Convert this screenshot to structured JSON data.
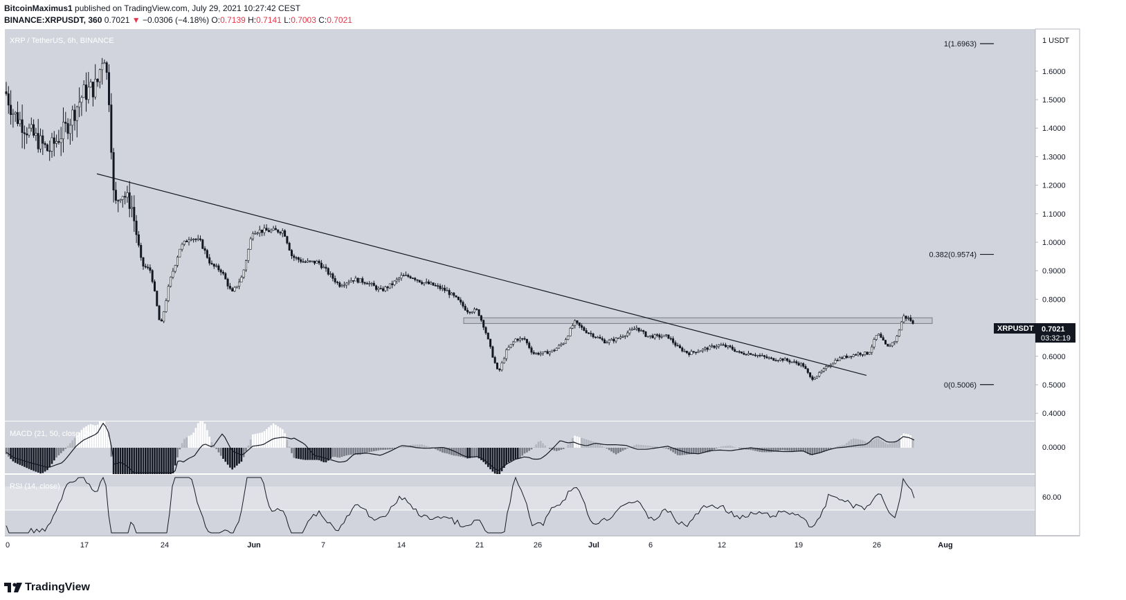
{
  "header": {
    "author": "BitcoinMaximus1",
    "published_text": "published on TradingView.com, July 29, 2021 10:27:42 CEST",
    "symbol": "BINANCE:XRPUSDT, 360",
    "last": "0.7021",
    "change": "−0.0306 (−4.18%)",
    "o_label": "O:",
    "o": "0.7139",
    "h_label": "H:",
    "h": "0.7141",
    "l_label": "L:",
    "l": "0.7003",
    "c_label": "C:",
    "c": "0.7021"
  },
  "chart_title": "XRP / TetherUS, 6h, BINANCE",
  "macd_label": "MACD (21, 50, close, 24)",
  "rsi_label": "RSI (14, close)",
  "price_axis": {
    "unit_label": "1 USDT",
    "ticks": [
      "1.6000",
      "1.5000",
      "1.4000",
      "1.3000",
      "1.2000",
      "1.1000",
      "1.0000",
      "0.9000",
      "0.8000",
      "0.7000",
      "0.6000",
      "0.5000",
      "0.4000"
    ]
  },
  "macd_axis_tick": "0.0000",
  "rsi_axis_tick": "60.00",
  "time_axis": [
    "0",
    "17",
    "24",
    "Jun",
    "7",
    "14",
    "21",
    "26",
    "Jul",
    "6",
    "12",
    "19",
    "26",
    "Aug"
  ],
  "fib_levels": [
    {
      "label": "1(1.6963)",
      "value": 1.6963
    },
    {
      "label": "0.382(0.9574)",
      "value": 0.9574
    },
    {
      "label": "0(0.5006)",
      "value": 0.5006
    }
  ],
  "price_tag": {
    "symbol": "XRPUSDT",
    "price": "0.7021",
    "countdown": "03:32:19"
  },
  "footer": {
    "brand": "TradingView"
  },
  "colors": {
    "pane_bg": "#d1d4dc",
    "rsi_band": "#dfe1e7",
    "price_tag_bg": "#131722",
    "down_arrow": "#e5374a"
  },
  "chart_data": {
    "type": "candlestick",
    "title": "XRP / TetherUS, 6h, BINANCE",
    "timeframe": "6h",
    "ylim": [
      0.37,
      1.72
    ],
    "approx_close_path": [
      [
        0,
        1.58
      ],
      [
        20,
        1.45
      ],
      [
        45,
        1.38
      ],
      [
        70,
        1.32
      ],
      [
        95,
        1.4
      ],
      [
        120,
        1.52
      ],
      [
        140,
        1.55
      ],
      [
        150,
        1.68
      ],
      [
        158,
        1.5
      ],
      [
        165,
        1.12
      ],
      [
        175,
        1.18
      ],
      [
        190,
        1.13
      ],
      [
        205,
        0.92
      ],
      [
        218,
        0.9
      ],
      [
        232,
        0.7
      ],
      [
        245,
        0.86
      ],
      [
        260,
        0.98
      ],
      [
        275,
        1.02
      ],
      [
        290,
        1.0
      ],
      [
        305,
        0.92
      ],
      [
        320,
        0.9
      ],
      [
        335,
        0.82
      ],
      [
        350,
        0.88
      ],
      [
        365,
        1.04
      ],
      [
        380,
        1.04
      ],
      [
        395,
        1.04
      ],
      [
        410,
        1.04
      ],
      [
        422,
        0.95
      ],
      [
        440,
        0.93
      ],
      [
        460,
        0.93
      ],
      [
        475,
        0.89
      ],
      [
        490,
        0.85
      ],
      [
        510,
        0.87
      ],
      [
        530,
        0.86
      ],
      [
        550,
        0.83
      ],
      [
        565,
        0.85
      ],
      [
        580,
        0.88
      ],
      [
        595,
        0.88
      ],
      [
        610,
        0.86
      ],
      [
        625,
        0.85
      ],
      [
        645,
        0.83
      ],
      [
        660,
        0.8
      ],
      [
        675,
        0.76
      ],
      [
        690,
        0.76
      ],
      [
        700,
        0.7
      ],
      [
        712,
        0.6
      ],
      [
        720,
        0.54
      ],
      [
        732,
        0.62
      ],
      [
        745,
        0.66
      ],
      [
        758,
        0.66
      ],
      [
        770,
        0.61
      ],
      [
        785,
        0.61
      ],
      [
        800,
        0.62
      ],
      [
        815,
        0.65
      ],
      [
        830,
        0.72
      ],
      [
        845,
        0.69
      ],
      [
        860,
        0.67
      ],
      [
        875,
        0.65
      ],
      [
        890,
        0.66
      ],
      [
        905,
        0.68
      ],
      [
        920,
        0.7
      ],
      [
        935,
        0.67
      ],
      [
        950,
        0.67
      ],
      [
        965,
        0.67
      ],
      [
        980,
        0.63
      ],
      [
        995,
        0.61
      ],
      [
        1010,
        0.62
      ],
      [
        1025,
        0.63
      ],
      [
        1040,
        0.64
      ],
      [
        1055,
        0.63
      ],
      [
        1070,
        0.61
      ],
      [
        1085,
        0.61
      ],
      [
        1100,
        0.6
      ],
      [
        1115,
        0.59
      ],
      [
        1130,
        0.59
      ],
      [
        1145,
        0.58
      ],
      [
        1160,
        0.57
      ],
      [
        1172,
        0.52
      ],
      [
        1185,
        0.54
      ],
      [
        1198,
        0.57
      ],
      [
        1210,
        0.59
      ],
      [
        1225,
        0.6
      ],
      [
        1240,
        0.61
      ],
      [
        1255,
        0.61
      ],
      [
        1268,
        0.68
      ],
      [
        1282,
        0.63
      ],
      [
        1295,
        0.66
      ],
      [
        1305,
        0.74
      ],
      [
        1315,
        0.73
      ],
      [
        1322,
        0.7
      ]
    ],
    "trendline": {
      "from": [
        140,
        1.24
      ],
      "to": [
        1252,
        0.533
      ]
    },
    "resistance_zone": {
      "from": 0.715,
      "to": 0.735
    },
    "last_price": 0.7021
  }
}
